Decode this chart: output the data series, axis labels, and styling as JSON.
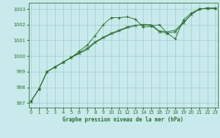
{
  "title": "Graphe pression niveau de la mer (hPa)",
  "background_color": "#c8eaec",
  "grid_color": "#a0c8cc",
  "line_color": "#2d6e30",
  "text_color": "#2d6e30",
  "x_ticks": [
    0,
    1,
    2,
    3,
    4,
    5,
    6,
    7,
    8,
    9,
    10,
    11,
    12,
    13,
    14,
    15,
    16,
    17,
    18,
    19,
    20,
    21,
    22,
    23
  ],
  "y_ticks": [
    997,
    998,
    999,
    1000,
    1001,
    1002,
    1003
  ],
  "ylim": [
    996.7,
    1003.4
  ],
  "xlim": [
    -0.3,
    23.3
  ],
  "series1_y": [
    997.1,
    997.9,
    999.0,
    999.3,
    999.6,
    999.9,
    1000.3,
    1000.7,
    1001.3,
    1002.0,
    1002.45,
    1002.45,
    1002.5,
    1002.35,
    1001.85,
    1001.9,
    1002.0,
    1001.45,
    1001.1,
    1002.3,
    1002.75,
    1003.0,
    1003.05,
    1003.05
  ],
  "series2_y": [
    997.1,
    997.9,
    999.0,
    999.3,
    999.6,
    999.9,
    1000.2,
    1000.5,
    1000.9,
    1001.2,
    1001.45,
    1001.65,
    1001.85,
    1001.95,
    1002.0,
    1001.95,
    1001.55,
    1001.45,
    1001.55,
    1002.1,
    1002.65,
    1003.0,
    1003.05,
    1003.05
  ],
  "series3_y": [
    997.1,
    997.9,
    999.0,
    999.3,
    999.6,
    999.9,
    1000.15,
    1000.4,
    1000.85,
    1001.15,
    1001.4,
    1001.6,
    1001.8,
    1001.95,
    1002.0,
    1002.0,
    1001.6,
    1001.55,
    1001.65,
    1002.15,
    1002.65,
    1003.0,
    1003.05,
    1003.05
  ]
}
